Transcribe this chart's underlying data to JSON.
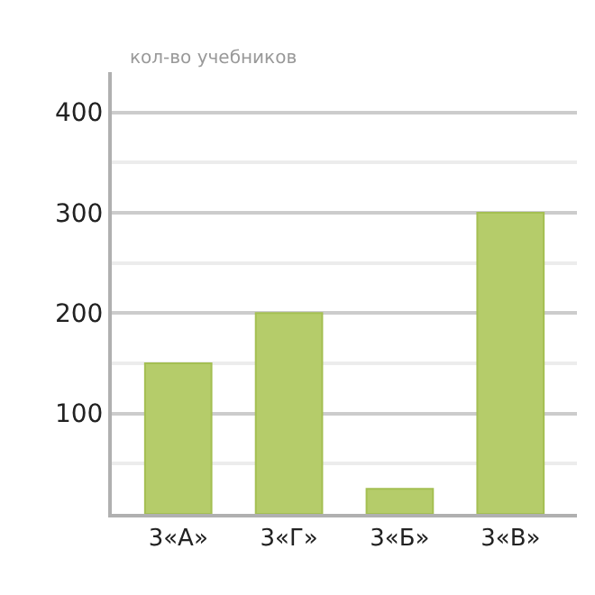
{
  "chart_data": {
    "type": "bar",
    "ylabel": "кол-во учебников",
    "categories": [
      "3«А»",
      "3«Г»",
      "3«Б»",
      "3«В»"
    ],
    "values": [
      150,
      200,
      25,
      300
    ],
    "color": "#b5cc6a",
    "ylim": [
      0,
      440
    ],
    "yticks": [
      {
        "value": 50,
        "label": null
      },
      100,
      {
        "value": 150,
        "label": null
      },
      200,
      {
        "value": 250,
        "label": null
      },
      300,
      {
        "value": 350,
        "label": null
      },
      400
    ],
    "grid": "y"
  }
}
